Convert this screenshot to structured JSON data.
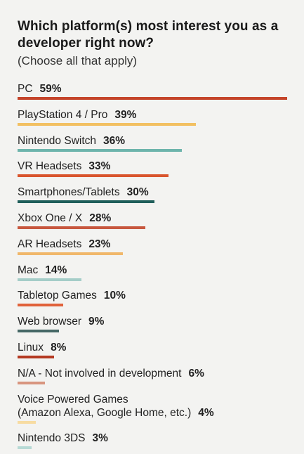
{
  "chart_data": {
    "type": "bar",
    "orientation": "horizontal",
    "title": "Which platform(s) most interest you as a developer right now?",
    "subtitle": "(Choose all that apply)",
    "unit": "%",
    "xlim": [
      0,
      59
    ],
    "grid": false,
    "legend": "none",
    "categories": [
      "PC",
      "PlayStation 4 / Pro",
      "Nintendo Switch",
      "VR Headsets",
      "Smartphones/Tablets",
      "Xbox One / X",
      "AR Headsets",
      "Mac",
      "Tabletop Games",
      "Web browser",
      "Linux",
      "N/A - Not involved in development",
      "Voice Powered Games (Amazon Alexa, Google Home, etc.)",
      "Nintendo 3DS"
    ],
    "values": [
      59,
      39,
      36,
      33,
      30,
      28,
      23,
      14,
      10,
      9,
      8,
      6,
      4,
      3
    ],
    "value_labels": [
      "59%",
      "39%",
      "36%",
      "33%",
      "30%",
      "28%",
      "23%",
      "14%",
      "10%",
      "9%",
      "8%",
      "6%",
      "4%",
      "3%"
    ],
    "label_lines": [
      [
        "PC"
      ],
      [
        "PlayStation 4 / Pro"
      ],
      [
        "Nintendo Switch"
      ],
      [
        "VR Headsets"
      ],
      [
        "Smartphones/Tablets"
      ],
      [
        "Xbox One / X"
      ],
      [
        "AR Headsets"
      ],
      [
        "Mac"
      ],
      [
        "Tabletop Games"
      ],
      [
        "Web browser"
      ],
      [
        "Linux"
      ],
      [
        "N/A - Not involved in development"
      ],
      [
        "Voice Powered Games",
        "(Amazon Alexa, Google Home, etc.)"
      ],
      [
        "Nintendo 3DS"
      ]
    ],
    "colors": [
      "#c4442a",
      "#f2c062",
      "#6db4ac",
      "#d9552d",
      "#1f5e5a",
      "#c7573e",
      "#f0b76a",
      "#a5cdc8",
      "#e0623b",
      "#466866",
      "#b43a22",
      "#d8957f",
      "#f7dca2",
      "#b7dad5"
    ]
  }
}
